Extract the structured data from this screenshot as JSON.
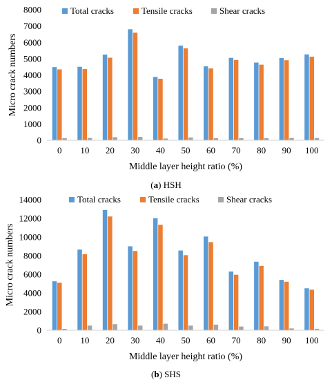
{
  "chart_data": [
    {
      "type": "bar",
      "caption_letter": "(a)",
      "caption_text": "HSH",
      "xlabel": "Middle layer height ratio (%)",
      "ylabel": "Micro crack numbers",
      "categories": [
        "0",
        "10",
        "20",
        "30",
        "40",
        "50",
        "60",
        "70",
        "80",
        "90",
        "100"
      ],
      "ylim": [
        0,
        8000
      ],
      "ytick_values": [
        0,
        1000,
        2000,
        3000,
        4000,
        5000,
        6000,
        7000,
        8000
      ],
      "ytick_labels": [
        "0",
        "1000",
        "2000",
        "3000",
        "4000",
        "5000",
        "6000",
        "7000",
        "8000"
      ],
      "grid": false,
      "legend_position": "top",
      "series": [
        {
          "name": "Total cracks",
          "color": "#5b9bd5",
          "values": [
            4480,
            4500,
            5250,
            6800,
            3880,
            5800,
            4530,
            5050,
            4760,
            5040,
            5260
          ]
        },
        {
          "name": "Tensile cracks",
          "color": "#ed7d31",
          "values": [
            4340,
            4360,
            5060,
            6590,
            3770,
            5630,
            4400,
            4920,
            4630,
            4900,
            5120
          ]
        },
        {
          "name": "Shear cracks",
          "color": "#a5a5a5",
          "values": [
            130,
            140,
            190,
            210,
            110,
            170,
            130,
            130,
            130,
            140,
            140
          ]
        }
      ]
    },
    {
      "type": "bar",
      "caption_letter": "(b)",
      "caption_text": "SHS",
      "xlabel": "Middle layer height ratio (%)",
      "ylabel": "Micro crack numbers",
      "categories": [
        "0",
        "10",
        "20",
        "30",
        "40",
        "50",
        "60",
        "70",
        "80",
        "90",
        "100"
      ],
      "ylim": [
        0,
        14000
      ],
      "ytick_values": [
        0,
        2000,
        4000,
        6000,
        8000,
        10000,
        12000,
        14000
      ],
      "ytick_labels": [
        "0",
        "2000",
        "4000",
        "6000",
        "8000",
        "10000",
        "12000",
        "14000"
      ],
      "grid": false,
      "legend_position": "top",
      "series": [
        {
          "name": "Total cracks",
          "color": "#5b9bd5",
          "values": [
            5250,
            8650,
            12900,
            9000,
            12000,
            8550,
            10050,
            6300,
            7350,
            5400,
            4500
          ]
        },
        {
          "name": "Tensile cracks",
          "color": "#ed7d31",
          "values": [
            5100,
            8150,
            12200,
            8500,
            11300,
            8050,
            9450,
            5950,
            6900,
            5200,
            4350
          ]
        },
        {
          "name": "Shear cracks",
          "color": "#a5a5a5",
          "values": [
            150,
            500,
            650,
            500,
            700,
            500,
            600,
            400,
            420,
            200,
            150
          ]
        }
      ]
    }
  ]
}
